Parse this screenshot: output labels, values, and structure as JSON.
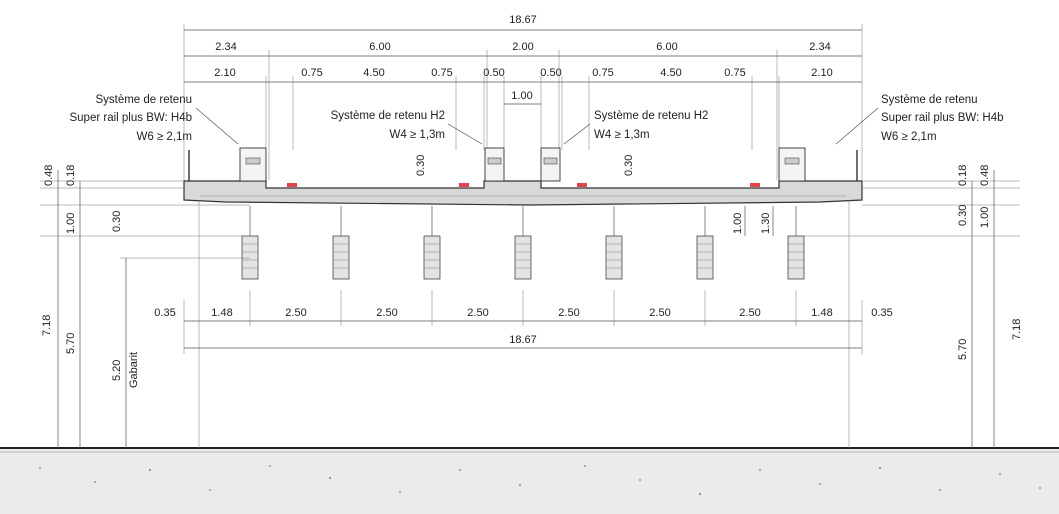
{
  "colors": {
    "deck_fill": "#d9d9d9",
    "line": "#333333",
    "barrier_marker": "#e0474c",
    "ground_fill": "#ebebeb"
  },
  "dims": {
    "total_top": "18.67",
    "total_bottom": "18.67",
    "row1": [
      "2.34",
      "6.00",
      "2.00",
      "6.00",
      "2.34"
    ],
    "row2": [
      "2.10",
      "0.75",
      "4.50",
      "0.75",
      "0.50",
      "0.50",
      "0.75",
      "4.50",
      "0.75",
      "2.10"
    ],
    "median": "1.00",
    "thick_030_a": "0.30",
    "thick_030_b": "0.30",
    "left_048": "0.48",
    "left_018": "0.18",
    "left_100": "1.00",
    "left_030": "0.30",
    "left_718": "7.18",
    "left_570": "5.70",
    "gabarit_value": "5.20",
    "gabarit_label": "Gabarit",
    "right_018": "0.18",
    "right_048": "0.48",
    "right_030": "0.30",
    "right_100": "1.00",
    "right_718": "7.18",
    "right_570": "5.70",
    "center_100": "1.00",
    "center_130": "1.30",
    "bottom_row": [
      "0.35",
      "1.48",
      "2.50",
      "2.50",
      "2.50",
      "2.50",
      "2.50",
      "2.50",
      "1.48",
      "0.35"
    ]
  },
  "labels": {
    "left_line1": "Système de retenu",
    "left_line2": "Super rail plus BW: H4b",
    "left_line3": "W6 ≥ 2,1m",
    "mid_left_line1": "Système de retenu H2",
    "mid_left_line2": "W4 ≥ 1,3m",
    "mid_right_line1": "Système de retenu H2",
    "mid_right_line2": "W4 ≥ 1,3m",
    "right_line1": "Système de retenu",
    "right_line2": "Super rail plus BW: H4b",
    "right_line3": "W6 ≥ 2,1m"
  }
}
